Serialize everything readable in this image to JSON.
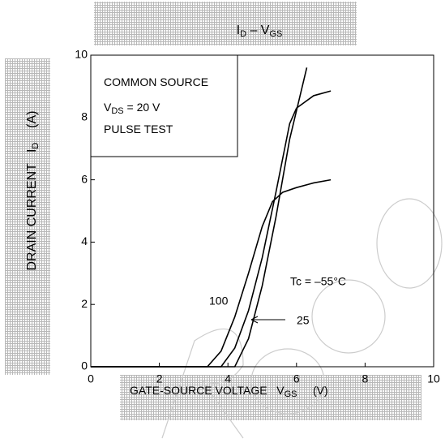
{
  "chart_data": {
    "type": "line",
    "title": [
      {
        "text": "I"
      },
      {
        "text": "D",
        "sub": true
      },
      {
        "text": " – V"
      },
      {
        "text": "GS",
        "sub": true
      }
    ],
    "x_label": [
      {
        "text": "GATE-SOURCE VOLTAGE"
      },
      {
        "text": "   V"
      },
      {
        "text": "GS",
        "sub": true
      },
      {
        "text": "     (V)"
      }
    ],
    "y_label": [
      {
        "text": "DRAIN CURRENT"
      },
      {
        "text": "   I"
      },
      {
        "text": "D",
        "sub": true
      },
      {
        "text": "    (A)"
      }
    ],
    "notes": [
      [
        {
          "text": "COMMON SOURCE"
        }
      ],
      [
        {
          "text": "V"
        },
        {
          "text": "DS",
          "sub": true
        },
        {
          "text": " = 20 V"
        }
      ],
      [
        {
          "text": "PULSE TEST"
        }
      ]
    ],
    "xlim": [
      0,
      10
    ],
    "xticks": [
      0,
      2,
      4,
      6,
      8,
      10
    ],
    "ylim": [
      0,
      10
    ],
    "yticks": [
      0,
      2,
      4,
      6,
      8,
      10
    ],
    "series": [
      {
        "name": "100",
        "color": "#000000",
        "x": [
          0,
          3.4,
          3.8,
          4.2,
          4.6,
          5.0,
          5.3,
          5.6,
          6.0,
          6.5,
          7.0
        ],
        "values": [
          0,
          0,
          0.5,
          1.6,
          3.0,
          4.5,
          5.3,
          5.6,
          5.75,
          5.9,
          6.0
        ]
      },
      {
        "name": "25",
        "color": "#000000",
        "x": [
          0,
          3.8,
          4.2,
          4.6,
          5.0,
          5.4,
          5.8,
          6.0,
          6.5,
          7.0
        ],
        "values": [
          0,
          0,
          0.6,
          1.8,
          3.5,
          5.6,
          7.8,
          8.3,
          8.7,
          8.85
        ]
      },
      {
        "name": "Tc = –55°C",
        "color": "#000000",
        "x": [
          0,
          4.2,
          4.6,
          5.0,
          5.4,
          5.8,
          6.3
        ],
        "values": [
          0,
          0,
          0.9,
          2.6,
          4.8,
          7.3,
          9.6
        ]
      }
    ]
  }
}
